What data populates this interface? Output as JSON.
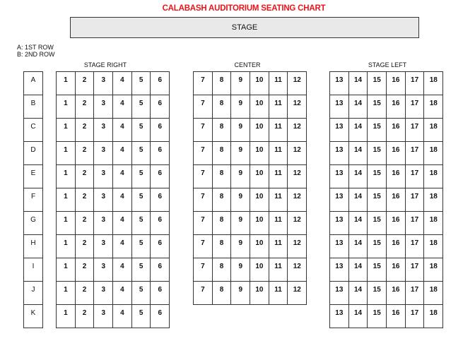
{
  "title": "CALABASH AUDITORIUM SEATING CHART",
  "stage": "STAGE",
  "legend": [
    "A: 1ST ROW",
    "B: 2ND ROW"
  ],
  "rows": [
    "A",
    "B",
    "C",
    "D",
    "E",
    "F",
    "G",
    "H",
    "I",
    "J",
    "K"
  ],
  "sections": [
    {
      "label": "STAGE RIGHT",
      "seats": [
        "1",
        "2",
        "3",
        "4",
        "5",
        "6"
      ],
      "rows": [
        "A",
        "B",
        "C",
        "D",
        "E",
        "F",
        "G",
        "H",
        "I",
        "J",
        "K"
      ]
    },
    {
      "label": "CENTER",
      "seats": [
        "7",
        "8",
        "9",
        "10",
        "11",
        "12"
      ],
      "rows": [
        "A",
        "B",
        "C",
        "D",
        "E",
        "F",
        "G",
        "H",
        "I",
        "J"
      ]
    },
    {
      "label": "STAGE LEFT",
      "seats": [
        "13",
        "14",
        "15",
        "16",
        "17",
        "18"
      ],
      "rows": [
        "A",
        "B",
        "C",
        "D",
        "E",
        "F",
        "G",
        "H",
        "I",
        "J",
        "K"
      ]
    }
  ]
}
